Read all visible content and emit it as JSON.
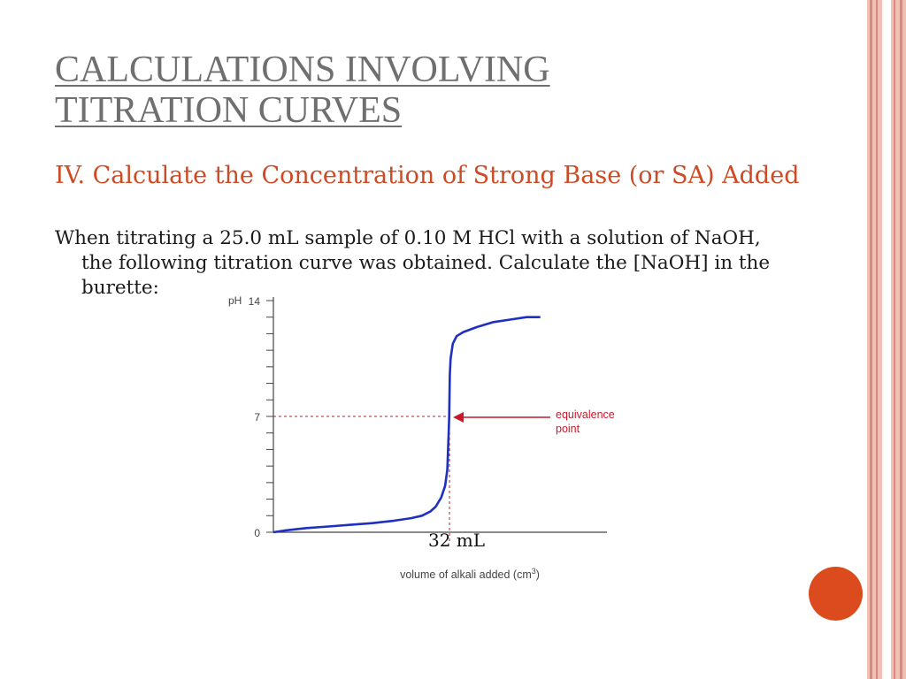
{
  "slide": {
    "title_line1": "CALCULATIONS INVOLVING",
    "title_line2": "TITRATION CURVES",
    "subheading": "IV. Calculate the Concentration of Strong Base (or SA) Added",
    "body": "When titrating a 25.0 mL sample of 0.10 M HCl with a solution of NaOH, the following titration curve was obtained.  Calculate the [NaOH] in the burette:"
  },
  "colors": {
    "title": "#6f6f6f",
    "subheading": "#cc4a24",
    "curve": "#1f2fc2",
    "annotation": "#c8192b",
    "accent_dot": "#dc4b1e"
  },
  "chart_data": {
    "type": "line",
    "title": "",
    "xlabel": "volume of alkali added (cm",
    "xlabel_sup": "3",
    "xlabel_close": ")",
    "ylabel": "pH",
    "ylim": [
      0,
      14
    ],
    "xlim": [
      0,
      50
    ],
    "yticks_labeled": [
      "0",
      "7",
      "14"
    ],
    "ytick_values": [
      0,
      7,
      14
    ],
    "minor_ytick_step": 1,
    "series": [
      {
        "x": [
          0,
          2,
          6,
          10,
          14,
          18,
          22,
          25,
          27,
          28.5,
          29.5,
          30.5,
          31.2,
          31.6,
          31.85,
          31.95,
          32.05,
          32.2,
          32.6,
          33.3,
          34.5,
          37,
          40,
          43,
          46,
          48.5
        ],
        "y": [
          0.0,
          0.1,
          0.25,
          0.35,
          0.45,
          0.55,
          0.7,
          0.85,
          1.0,
          1.25,
          1.55,
          2.1,
          2.8,
          3.8,
          6.0,
          7.0,
          9.5,
          10.5,
          11.4,
          11.85,
          12.1,
          12.4,
          12.7,
          12.85,
          13.0,
          13.0
        ]
      }
    ],
    "equivalence_point": {
      "x": 32,
      "y": 7
    },
    "annotations": {
      "equivalence_line1": "equivalence",
      "equivalence_line2": "point",
      "volume_label": "32 mL"
    }
  }
}
